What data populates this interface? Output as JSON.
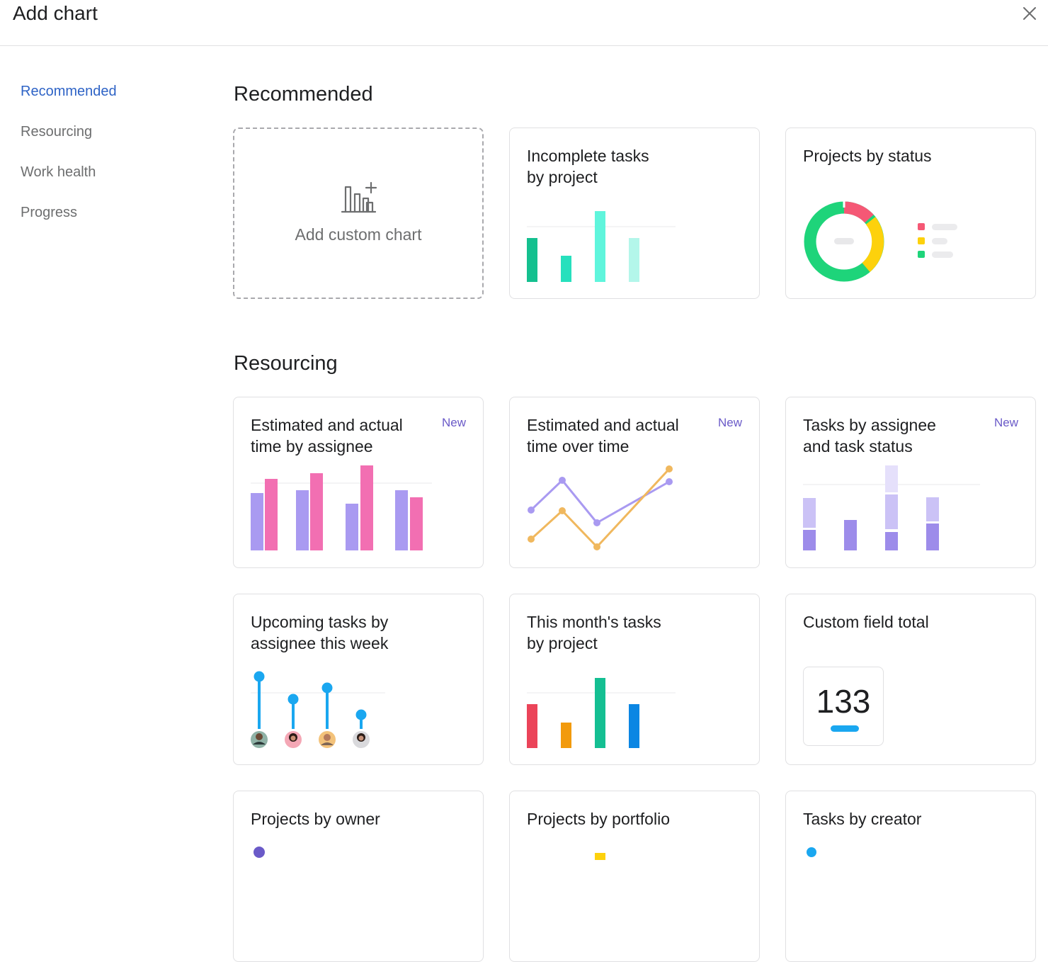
{
  "header": {
    "title": "Add chart",
    "close_icon": "close-icon"
  },
  "sidebar": {
    "items": [
      {
        "label": "Recommended",
        "active": true
      },
      {
        "label": "Resourcing",
        "active": false
      },
      {
        "label": "Work health",
        "active": false
      },
      {
        "label": "Progress",
        "active": false
      }
    ]
  },
  "sections": {
    "recommended": {
      "title": "Recommended",
      "cards": [
        {
          "title": "Add custom chart",
          "icon": "bar-chart-plus-icon"
        },
        {
          "title": "Incomplete tasks\nby project"
        },
        {
          "title": "Projects by status"
        }
      ]
    },
    "resourcing": {
      "title": "Resourcing",
      "cards": [
        {
          "title": "Estimated and actual\ntime by assignee",
          "badge": "New"
        },
        {
          "title": "Estimated and actual\ntime over time",
          "badge": "New"
        },
        {
          "title": "Tasks by assignee\nand task status",
          "badge": "New"
        },
        {
          "title": "Upcoming tasks by\nassignee this week"
        },
        {
          "title": "This month's tasks\nby project"
        },
        {
          "title": "Custom field total",
          "value": "133"
        },
        {
          "title": "Projects by owner"
        },
        {
          "title": "Projects by portfolio"
        },
        {
          "title": "Tasks by creator"
        }
      ]
    }
  },
  "colors": {
    "accent": "#2e63c6",
    "badge": "#6a5ac8",
    "teal_dark": "#14c08f",
    "teal_mid": "#27e0bd",
    "teal_light": "#5ff5dc",
    "teal_pale": "#b3f6ea",
    "pink": "#f26fb2",
    "purple": "#a99af1",
    "orange": "#f0b85e",
    "blue": "#1aa7f0",
    "red": "#eb4459",
    "amber": "#f29a0d",
    "green": "#14bf92",
    "donut_red": "#f55875",
    "donut_yellow": "#fdd10c",
    "donut_green": "#1ed47a"
  }
}
